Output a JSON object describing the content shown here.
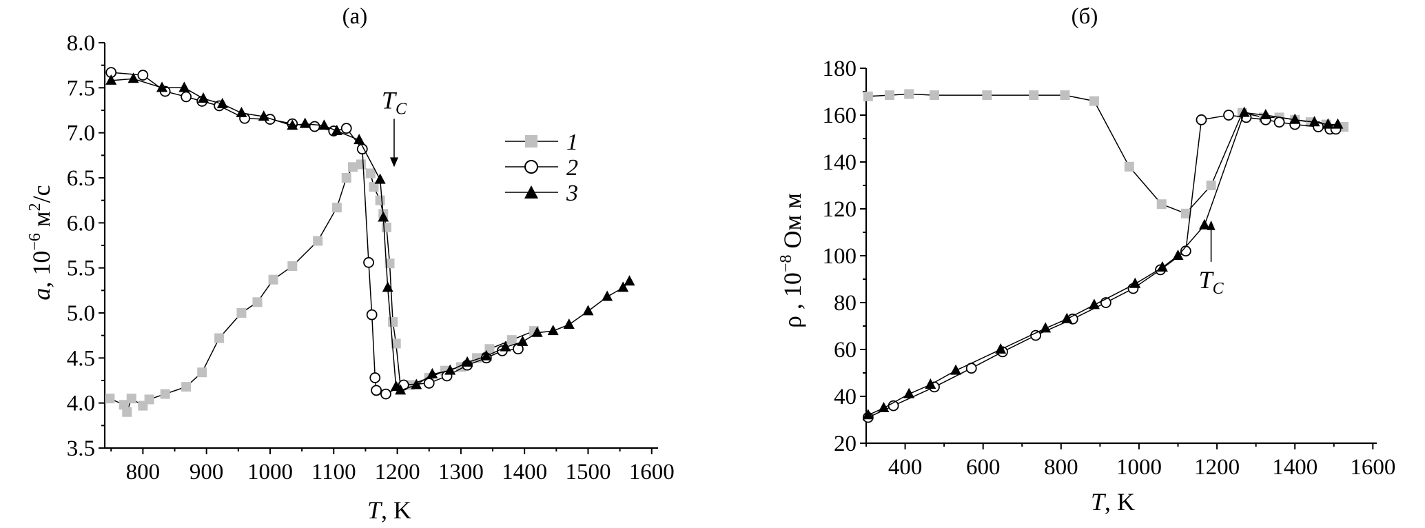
{
  "chart_data": [
    {
      "type": "line",
      "panel": "(a)",
      "title": "(a)",
      "ylabel_main": "a",
      "ylabel_rest": ", 10",
      "ylabel_exp": "−6",
      "ylabel_units": " м",
      "ylabel_units_exp": "2",
      "ylabel_units_tail": "/c",
      "xlabel_main": "T",
      "xlabel_rest": ", K",
      "xlim": [
        740,
        1610
      ],
      "ylim": [
        3.5,
        8.0
      ],
      "xticks": [
        "800",
        "900",
        "1000",
        "1100",
        "1200",
        "1300",
        "1400",
        "1500",
        "1600"
      ],
      "yticks": [
        "3.5",
        "4.0",
        "4.5",
        "5.0",
        "5.5",
        "6.0",
        "6.5",
        "7.0",
        "7.5",
        "8.0"
      ],
      "annotation": {
        "main": "T",
        "sub": "C",
        "x": 1195,
        "y_tip": 6.62
      },
      "legend": {
        "placement": "upper-right",
        "entries": [
          "1",
          "2",
          "3"
        ]
      },
      "series": [
        {
          "name": "1",
          "marker": "square",
          "color": "#c0c0c0",
          "points": [
            [
              748,
              4.05
            ],
            [
              770,
              3.98
            ],
            [
              775,
              3.9
            ],
            [
              782,
              4.05
            ],
            [
              800,
              3.97
            ],
            [
              810,
              4.04
            ],
            [
              835,
              4.1
            ],
            [
              868,
              4.18
            ],
            [
              893,
              4.34
            ],
            [
              920,
              4.72
            ],
            [
              955,
              5.0
            ],
            [
              980,
              5.12
            ],
            [
              1005,
              5.37
            ],
            [
              1035,
              5.52
            ],
            [
              1075,
              5.8
            ],
            [
              1105,
              6.17
            ],
            [
              1120,
              6.5
            ],
            [
              1130,
              6.62
            ],
            [
              1143,
              6.65
            ],
            [
              1158,
              6.55
            ],
            [
              1163,
              6.4
            ],
            [
              1173,
              6.25
            ],
            [
              1178,
              6.1
            ],
            [
              1183,
              5.95
            ],
            [
              1188,
              5.55
            ],
            [
              1193,
              4.9
            ],
            [
              1198,
              4.66
            ],
            [
              1205,
              4.18
            ],
            [
              1220,
              4.2
            ],
            [
              1250,
              4.28
            ],
            [
              1275,
              4.36
            ],
            [
              1300,
              4.4
            ],
            [
              1325,
              4.5
            ],
            [
              1345,
              4.6
            ],
            [
              1380,
              4.7
            ],
            [
              1415,
              4.8
            ]
          ]
        },
        {
          "name": "2",
          "marker": "circle",
          "color": "#000000",
          "points": [
            [
              750,
              7.67
            ],
            [
              800,
              7.64
            ],
            [
              835,
              7.46
            ],
            [
              868,
              7.4
            ],
            [
              893,
              7.35
            ],
            [
              920,
              7.3
            ],
            [
              960,
              7.16
            ],
            [
              1000,
              7.15
            ],
            [
              1035,
              7.1
            ],
            [
              1070,
              7.07
            ],
            [
              1100,
              7.02
            ],
            [
              1120,
              7.05
            ],
            [
              1145,
              6.82
            ],
            [
              1155,
              5.56
            ],
            [
              1160,
              4.98
            ],
            [
              1165,
              4.28
            ],
            [
              1167,
              4.14
            ],
            [
              1182,
              4.1
            ],
            [
              1210,
              4.2
            ],
            [
              1250,
              4.22
            ],
            [
              1278,
              4.3
            ],
            [
              1310,
              4.42
            ],
            [
              1340,
              4.5
            ],
            [
              1365,
              4.58
            ],
            [
              1390,
              4.6
            ]
          ]
        },
        {
          "name": "3",
          "marker": "triangle",
          "color": "#000000",
          "points": [
            [
              750,
              7.58
            ],
            [
              785,
              7.6
            ],
            [
              830,
              7.5
            ],
            [
              865,
              7.5
            ],
            [
              895,
              7.38
            ],
            [
              925,
              7.32
            ],
            [
              955,
              7.22
            ],
            [
              990,
              7.18
            ],
            [
              1035,
              7.08
            ],
            [
              1055,
              7.1
            ],
            [
              1085,
              7.08
            ],
            [
              1105,
              7.02
            ],
            [
              1140,
              6.92
            ],
            [
              1173,
              6.48
            ],
            [
              1178,
              6.06
            ],
            [
              1185,
              5.28
            ],
            [
              1198,
              4.18
            ],
            [
              1205,
              4.14
            ],
            [
              1230,
              4.2
            ],
            [
              1255,
              4.32
            ],
            [
              1283,
              4.36
            ],
            [
              1310,
              4.45
            ],
            [
              1340,
              4.52
            ],
            [
              1370,
              4.62
            ],
            [
              1397,
              4.68
            ],
            [
              1420,
              4.78
            ],
            [
              1445,
              4.8
            ],
            [
              1470,
              4.87
            ],
            [
              1500,
              5.02
            ],
            [
              1530,
              5.18
            ],
            [
              1555,
              5.28
            ],
            [
              1565,
              5.35
            ]
          ]
        }
      ]
    },
    {
      "type": "line",
      "panel": "(б)",
      "title": "(б)",
      "ylabel_main": "ρ",
      "ylabel_rest": " , 10",
      "ylabel_exp": "−8",
      "ylabel_units": " Ом м",
      "xlabel_main": "T",
      "xlabel_rest": ", K",
      "xlim": [
        300,
        1610
      ],
      "ylim": [
        20,
        180
      ],
      "xticks": [
        "400",
        "600",
        "800",
        "1000",
        "1200",
        "1400",
        "1600"
      ],
      "yticks": [
        "20",
        "40",
        "60",
        "80",
        "100",
        "120",
        "140",
        "160",
        "180"
      ],
      "annotation": {
        "main": "T",
        "sub": "C",
        "x": 1185,
        "y_tip": 118
      },
      "series": [
        {
          "name": "1",
          "marker": "square",
          "color": "#c0c0c0",
          "points": [
            [
              305,
              168
            ],
            [
              360,
              168.5
            ],
            [
              410,
              169
            ],
            [
              475,
              168.5
            ],
            [
              610,
              168.5
            ],
            [
              730,
              168.5
            ],
            [
              810,
              168.5
            ],
            [
              885,
              166
            ],
            [
              975,
              138
            ],
            [
              1058,
              122
            ],
            [
              1120,
              118
            ],
            [
              1185,
              130
            ],
            [
              1265,
              161
            ],
            [
              1320,
              159
            ],
            [
              1360,
              159
            ],
            [
              1400,
              158
            ],
            [
              1440,
              157
            ],
            [
              1480,
              156
            ],
            [
              1525,
              155
            ]
          ]
        },
        {
          "name": "2",
          "marker": "circle",
          "color": "#000000",
          "points": [
            [
              305,
              31
            ],
            [
              370,
              36
            ],
            [
              475,
              44
            ],
            [
              570,
              52
            ],
            [
              650,
              59
            ],
            [
              735,
              66
            ],
            [
              830,
              73
            ],
            [
              915,
              80
            ],
            [
              985,
              86
            ],
            [
              1055,
              94
            ],
            [
              1120,
              102
            ],
            [
              1160,
              158
            ],
            [
              1230,
              160
            ],
            [
              1275,
              159
            ],
            [
              1325,
              158
            ],
            [
              1360,
              157
            ],
            [
              1400,
              156
            ],
            [
              1460,
              155
            ],
            [
              1490,
              154
            ],
            [
              1505,
              154
            ]
          ]
        },
        {
          "name": "3",
          "marker": "triangle",
          "color": "#000000",
          "points": [
            [
              305,
              32
            ],
            [
              345,
              35
            ],
            [
              410,
              41
            ],
            [
              465,
              45
            ],
            [
              530,
              51
            ],
            [
              645,
              60
            ],
            [
              760,
              69
            ],
            [
              815,
              73
            ],
            [
              885,
              79
            ],
            [
              990,
              88
            ],
            [
              1060,
              95
            ],
            [
              1100,
              100
            ],
            [
              1168,
              113
            ],
            [
              1270,
              161
            ],
            [
              1325,
              160
            ],
            [
              1400,
              158
            ],
            [
              1450,
              157
            ],
            [
              1485,
              156
            ],
            [
              1510,
              156
            ]
          ]
        }
      ]
    }
  ]
}
